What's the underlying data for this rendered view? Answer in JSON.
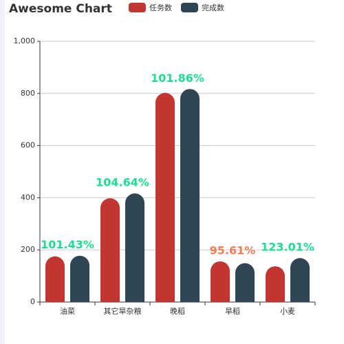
{
  "chart_data": {
    "type": "bar",
    "title": "Awesome Chart",
    "categories": [
      "油菜",
      "其它旱杂粮",
      "晚稻",
      "旱稻",
      "小麦"
    ],
    "series": [
      {
        "name": "任务数",
        "color": "#c23531",
        "values": [
          175,
          398,
          802,
          156,
          137
        ]
      },
      {
        "name": "完成数",
        "color": "#2f4554",
        "values": [
          177.5,
          416.5,
          817,
          149,
          168.5
        ]
      }
    ],
    "annotations": [
      {
        "text": "101.43%",
        "color": "#19e08f"
      },
      {
        "text": "104.64%",
        "color": "#19e08f"
      },
      {
        "text": "101.86%",
        "color": "#19e08f"
      },
      {
        "text": "95.61%",
        "color": "#f07b52"
      },
      {
        "text": "123.01%",
        "color": "#19e08f"
      }
    ],
    "ylim": [
      0,
      1000
    ],
    "yticks": [
      0,
      200,
      400,
      600,
      800,
      {
        "value": 1000,
        "label": "1,000"
      }
    ],
    "grid": true
  }
}
